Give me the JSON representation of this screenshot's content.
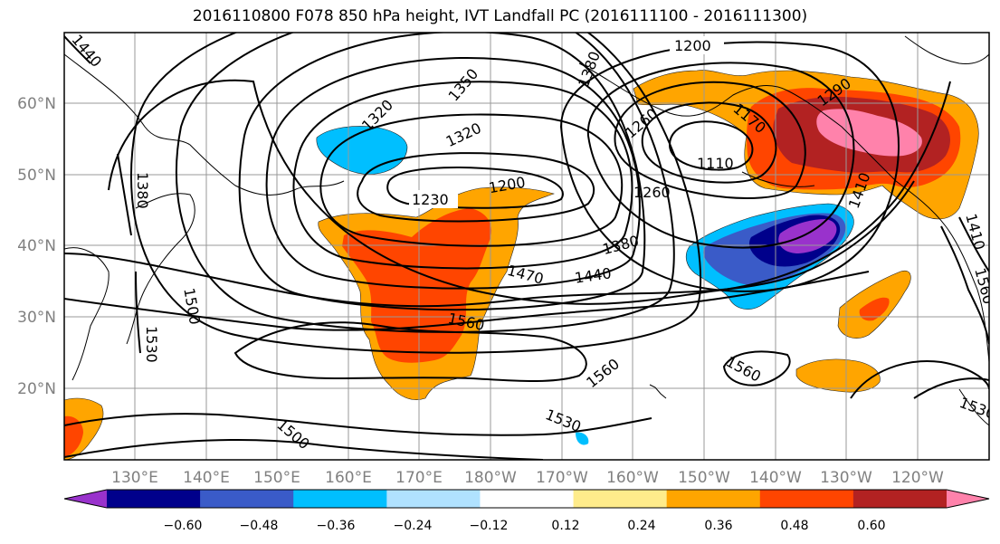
{
  "title": "2016110800 F078 850 hPa height, IVT Landfall PC (2016111100 - 2016111300)",
  "map": {
    "lon_labels": [
      "130°E",
      "140°E",
      "150°E",
      "160°E",
      "170°E",
      "180°W",
      "170°W",
      "160°W",
      "150°W",
      "140°W",
      "130°W",
      "120°W"
    ],
    "lat_labels": [
      "20°N",
      "30°N",
      "40°N",
      "50°N",
      "60°N"
    ],
    "contour_labels": [
      "1200",
      "1350",
      "1320",
      "1230",
      "1200",
      "1260",
      "1110",
      "1290",
      "1380",
      "1440",
      "1470",
      "1560",
      "1560",
      "1560",
      "1530",
      "1500",
      "1530",
      "1380",
      "1410",
      "1170",
      "1410",
      "1560",
      "1530",
      "1440",
      "1500",
      "1380",
      "1320",
      "1260"
    ]
  },
  "colorbar": {
    "tick_labels": [
      "−0.60",
      "−0.48",
      "−0.36",
      "−0.24",
      "−0.12",
      "0.12",
      "0.24",
      "0.36",
      "0.48",
      "0.60"
    ],
    "colors": [
      "#9932cc",
      "#00008b",
      "#3a5bc8",
      "#00bfff",
      "#b0e2ff",
      "#ffffff",
      "#ffec8b",
      "#ffa500",
      "#ff4500",
      "#b22222",
      "#ff82ab"
    ]
  }
}
